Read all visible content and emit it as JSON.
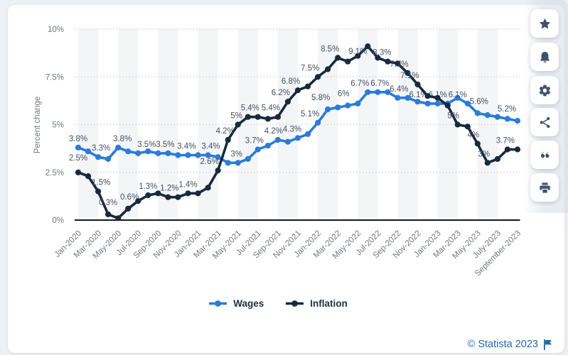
{
  "page": {
    "background": "#edf0f4",
    "card_background": "#ffffff"
  },
  "chart_data": {
    "type": "line",
    "title": "",
    "xlabel": "",
    "ylabel": "Percent change",
    "ylim": [
      0,
      10
    ],
    "grid": "horizontal-dotted",
    "plot_bands": "alternating vertical 2-month stripes",
    "y_ticks": [
      {
        "label": "0%",
        "value": 0
      },
      {
        "label": "2.5%",
        "value": 2.5
      },
      {
        "label": "5%",
        "value": 5
      },
      {
        "label": "7.5%",
        "value": 7.5
      },
      {
        "label": "10%",
        "value": 10
      }
    ],
    "x_tick_labels": [
      "Jan-2020",
      "Mar-2020",
      "May-2020",
      "Jul-2020",
      "Sep-2020",
      "Nov-2020",
      "Jan-2021",
      "Mar-2021",
      "May-2021",
      "Jul-2021",
      "Sep-2021",
      "Nov-2021",
      "Jan-2022",
      "Mar-2022",
      "May-2022",
      "Jul-2022",
      "Sep-2022",
      "Nov-2022",
      "Jan-2023",
      "Mar-2023",
      "May-2023",
      "July-2023",
      "September-2023"
    ],
    "months_per_tick": 2,
    "n_points": 45,
    "legend_position": "bottom-center",
    "series": [
      {
        "name": "Wages",
        "color": "#2b7bd8",
        "values": [
          3.8,
          3.6,
          3.3,
          3.2,
          3.8,
          3.6,
          3.5,
          3.6,
          3.5,
          3.5,
          3.4,
          3.4,
          3.4,
          3.4,
          3.3,
          3.0,
          3.0,
          3.2,
          3.7,
          3.9,
          4.2,
          4.1,
          4.3,
          4.5,
          5.1,
          5.8,
          5.9,
          6.0,
          6.1,
          6.7,
          6.7,
          6.7,
          6.4,
          6.4,
          6.2,
          6.1,
          6.1,
          6.1,
          6.4,
          6.1,
          5.6,
          5.5,
          5.4,
          5.3,
          5.2
        ],
        "labels": [
          {
            "i": 0,
            "t": "3.8%",
            "dx": 0,
            "dy": 0
          },
          {
            "i": 2,
            "t": "3.3%",
            "dx": 4,
            "dy": 0
          },
          {
            "i": 4,
            "t": "3.8%",
            "dx": 6,
            "dy": 0
          },
          {
            "i": 6,
            "t": "3.5%",
            "dx": 12,
            "dy": 0
          },
          {
            "i": 8,
            "t": "3.5%",
            "dx": 10,
            "dy": 0
          },
          {
            "i": 10,
            "t": "3.4%",
            "dx": 12,
            "dy": 0
          },
          {
            "i": 12,
            "t": "3.4%",
            "dx": 18,
            "dy": 0
          },
          {
            "i": 16,
            "t": "3%",
            "dx": -2,
            "dy": 0
          },
          {
            "i": 18,
            "t": "3.7%",
            "dx": -5,
            "dy": 0
          },
          {
            "i": 20,
            "t": "4.2%",
            "dx": -6,
            "dy": 0
          },
          {
            "i": 22,
            "t": "4.3%",
            "dx": -8,
            "dy": 0
          },
          {
            "i": 24,
            "t": "5.1%",
            "dx": -11,
            "dy": 0
          },
          {
            "i": 25,
            "t": "5.8%",
            "dx": -10,
            "dy": -4
          },
          {
            "i": 27,
            "t": "6%",
            "dx": -6,
            "dy": -4
          },
          {
            "i": 29,
            "t": "6.7%",
            "dx": -11,
            "dy": 0
          },
          {
            "i": 31,
            "t": "6.7%",
            "dx": -11,
            "dy": 0
          },
          {
            "i": 32,
            "t": "6.4%",
            "dx": 2,
            "dy": 0
          },
          {
            "i": 35,
            "t": "6.1%",
            "dx": -13,
            "dy": 0
          },
          {
            "i": 37,
            "t": "6.1%",
            "dx": -14,
            "dy": 0
          },
          {
            "i": 39,
            "t": "6.1%",
            "dx": -14,
            "dy": 0
          },
          {
            "i": 40,
            "t": "5.6%",
            "dx": 2,
            "dy": -4
          },
          {
            "i": 44,
            "t": "5.2%",
            "dx": -15,
            "dy": -4
          }
        ]
      },
      {
        "name": "Inflation",
        "color": "#172a3e",
        "values": [
          2.5,
          2.3,
          1.5,
          0.3,
          0.1,
          0.6,
          1.0,
          1.3,
          1.4,
          1.2,
          1.2,
          1.4,
          1.4,
          1.7,
          2.6,
          4.2,
          5.0,
          5.4,
          5.4,
          5.3,
          5.4,
          6.2,
          6.8,
          7.0,
          7.5,
          7.9,
          8.5,
          8.3,
          8.6,
          9.1,
          8.5,
          8.3,
          8.2,
          7.7,
          7.1,
          6.5,
          6.4,
          6.0,
          5.0,
          4.9,
          4.0,
          3.0,
          3.2,
          3.7,
          3.7
        ],
        "labels": [
          {
            "i": 0,
            "t": "2.5%",
            "dx": 0,
            "dy": -8
          },
          {
            "i": 2,
            "t": "1.5%",
            "dx": 4,
            "dy": 0
          },
          {
            "i": 3,
            "t": "0.3%",
            "dx": 0,
            "dy": -4
          },
          {
            "i": 5,
            "t": "0.6%",
            "dx": 2,
            "dy": -4
          },
          {
            "i": 7,
            "t": "1.3%",
            "dx": 0,
            "dy": 0
          },
          {
            "i": 9,
            "t": "1.2%",
            "dx": 2,
            "dy": 0
          },
          {
            "i": 11,
            "t": "1.4%",
            "dx": 0,
            "dy": 0
          },
          {
            "i": 14,
            "t": "2.6%",
            "dx": -12,
            "dy": 0
          },
          {
            "i": 15,
            "t": "4.2%",
            "dx": -4,
            "dy": 0
          },
          {
            "i": 16,
            "t": "5%",
            "dx": -2,
            "dy": 0
          },
          {
            "i": 17,
            "t": "5.4%",
            "dx": 3,
            "dy": 0
          },
          {
            "i": 20,
            "t": "5.4%",
            "dx": -10,
            "dy": 0
          },
          {
            "i": 21,
            "t": "6.2%",
            "dx": -10,
            "dy": 0
          },
          {
            "i": 22,
            "t": "6.8%",
            "dx": -10,
            "dy": 0
          },
          {
            "i": 24,
            "t": "7.5%",
            "dx": -11,
            "dy": 0
          },
          {
            "i": 26,
            "t": "8.5%",
            "dx": -11,
            "dy": 0
          },
          {
            "i": 29,
            "t": "9.1%",
            "dx": -14,
            "dy": 20
          },
          {
            "i": 31,
            "t": "8.3%",
            "dx": -8,
            "dy": 0
          },
          {
            "i": 33,
            "t": "7.7%",
            "dx": -12,
            "dy": 0
          },
          {
            "i": 34,
            "t": "7.1%",
            "dx": -11,
            "dy": 0
          },
          {
            "i": 38,
            "t": "5%",
            "dx": -6,
            "dy": 0
          },
          {
            "i": 40,
            "t": "4%",
            "dx": -6,
            "dy": 0
          },
          {
            "i": 41,
            "t": "3%",
            "dx": -5,
            "dy": 0
          },
          {
            "i": 43,
            "t": "3.7%",
            "dx": -3,
            "dy": 0
          }
        ]
      }
    ]
  },
  "legend": [
    {
      "label": "Wages",
      "color": "#2b7bd8"
    },
    {
      "label": "Inflation",
      "color": "#172a3e"
    }
  ],
  "sidebar": {
    "buttons": [
      {
        "name": "favorite",
        "icon": "star-icon"
      },
      {
        "name": "notifications",
        "icon": "bell-icon"
      },
      {
        "name": "settings",
        "icon": "gear-icon"
      },
      {
        "name": "share",
        "icon": "share-icon"
      },
      {
        "name": "cite",
        "icon": "quote-icon"
      },
      {
        "name": "print",
        "icon": "printer-icon"
      }
    ]
  },
  "footer": {
    "copyright": "© Statista 2023"
  },
  "style": {
    "band_color": "#f4f5f7",
    "gridline_color": "#c9ccd1",
    "axis_color": "#14181d",
    "tick_text_color": "#72777e",
    "data_label_color": "#44505f"
  }
}
